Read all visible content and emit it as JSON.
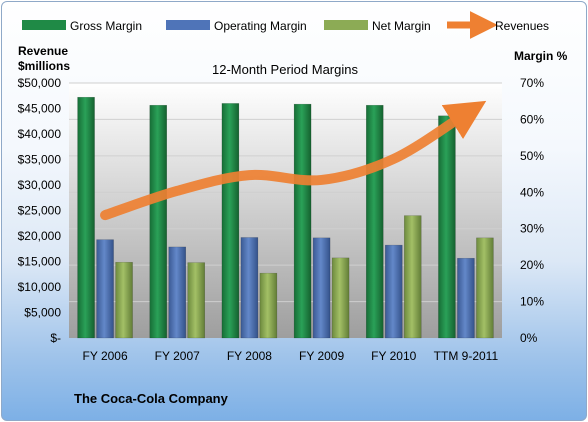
{
  "chart_data": {
    "type": "bar",
    "title": "12-Month Period Margins",
    "categories": [
      "FY 2006",
      "FY 2007",
      "FY 2008",
      "FY 2009",
      "FY 2010",
      "TTM 9-2011"
    ],
    "ylabel_left": "Revenue\n$millions",
    "ylabel_right": "Margin %",
    "yleft_ticks": [
      "$-",
      "$5,000",
      "$10,000",
      "$15,000",
      "$20,000",
      "$25,000",
      "$30,000",
      "$35,000",
      "$40,000",
      "$45,000",
      "$50,000"
    ],
    "yright_ticks": [
      "0%",
      "10%",
      "20%",
      "30%",
      "40%",
      "50%",
      "60%",
      "70%"
    ],
    "ylim_left": [
      0,
      50000
    ],
    "ylim_right": [
      0,
      70
    ],
    "legend_position": "top",
    "series": [
      {
        "name": "Gross Margin",
        "kind": "bar",
        "axis": "right",
        "color": "#1f8a46",
        "values": [
          66.1,
          63.9,
          64.4,
          64.2,
          63.9,
          61.0
        ]
      },
      {
        "name": "Operating Margin",
        "kind": "bar",
        "axis": "right",
        "color": "#4f74b8",
        "values": [
          27.0,
          25.0,
          27.6,
          27.5,
          25.5,
          21.9
        ]
      },
      {
        "name": "Net Margin",
        "kind": "bar",
        "axis": "right",
        "color": "#8cab55",
        "values": [
          20.8,
          20.7,
          17.8,
          22.0,
          33.6,
          27.5
        ]
      },
      {
        "name": "Revenues",
        "kind": "line",
        "axis": "left",
        "color": "#ee8032",
        "values": [
          24088,
          28857,
          31944,
          30990,
          35119,
          44000
        ]
      }
    ]
  },
  "footer": {
    "company": "The Coca-Cola Company"
  }
}
